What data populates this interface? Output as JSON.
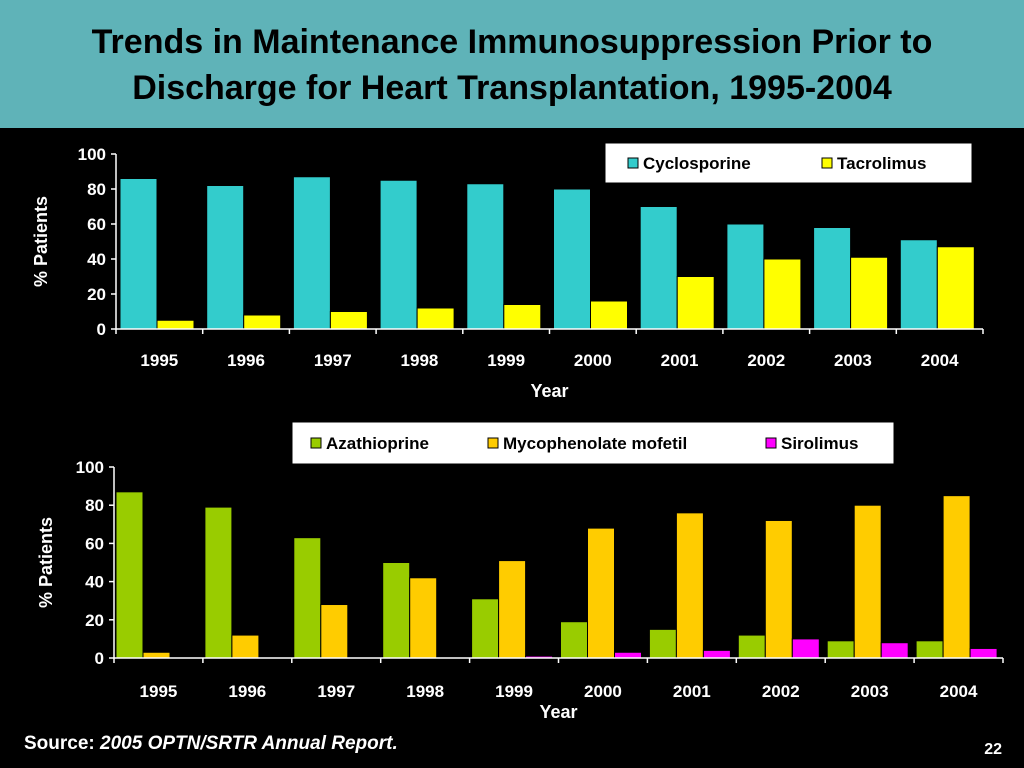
{
  "slide": {
    "title_line1": "Trends in Maintenance Immunosuppression Prior to",
    "title_line2": "Discharge for Heart Transplantation, 1995-2004",
    "source_label": "Source: ",
    "source_text": "2005 OPTN/SRTR Annual Report.",
    "slide_number": "22"
  },
  "colors": {
    "title_bg": "#5fb3b8",
    "background": "#000000",
    "cyclosporine": "#33cccc",
    "tacrolimus": "#ffff00",
    "azathioprine": "#99cc00",
    "mycophenolate": "#ffcc00",
    "sirolimus": "#ff00ff"
  },
  "chart_data": [
    {
      "type": "bar",
      "xlabel": "Year",
      "ylabel": "% Patients",
      "ylim": [
        0,
        100
      ],
      "yticks": [
        "0",
        "20",
        "40",
        "60",
        "80",
        "100"
      ],
      "legend_position": "top-right",
      "categories": [
        "1995",
        "1996",
        "1997",
        "1998",
        "1999",
        "2000",
        "2001",
        "2002",
        "2003",
        "2004"
      ],
      "series": [
        {
          "name": "Cyclosporine",
          "color": "#33cccc",
          "values": [
            86,
            82,
            87,
            85,
            83,
            80,
            70,
            60,
            58,
            51
          ]
        },
        {
          "name": "Tacrolimus",
          "color": "#ffff00",
          "values": [
            5,
            8,
            10,
            12,
            14,
            16,
            30,
            40,
            41,
            47
          ]
        }
      ]
    },
    {
      "type": "bar",
      "xlabel": "Year",
      "ylabel": "% Patients",
      "ylim": [
        0,
        100
      ],
      "yticks": [
        "0",
        "20",
        "40",
        "60",
        "80",
        "100"
      ],
      "legend_position": "top-center",
      "categories": [
        "1995",
        "1996",
        "1997",
        "1998",
        "1999",
        "2000",
        "2001",
        "2002",
        "2003",
        "2004"
      ],
      "series": [
        {
          "name": "Azathioprine",
          "color": "#99cc00",
          "values": [
            87,
            79,
            63,
            50,
            31,
            19,
            15,
            12,
            9,
            9
          ]
        },
        {
          "name": "Mycophenolate mofetil",
          "color": "#ffcc00",
          "values": [
            3,
            12,
            28,
            42,
            51,
            68,
            76,
            72,
            80,
            85
          ]
        },
        {
          "name": "Sirolimus",
          "color": "#ff00ff",
          "values": [
            0,
            0,
            0,
            0,
            1,
            3,
            4,
            10,
            8,
            5
          ]
        }
      ]
    }
  ]
}
